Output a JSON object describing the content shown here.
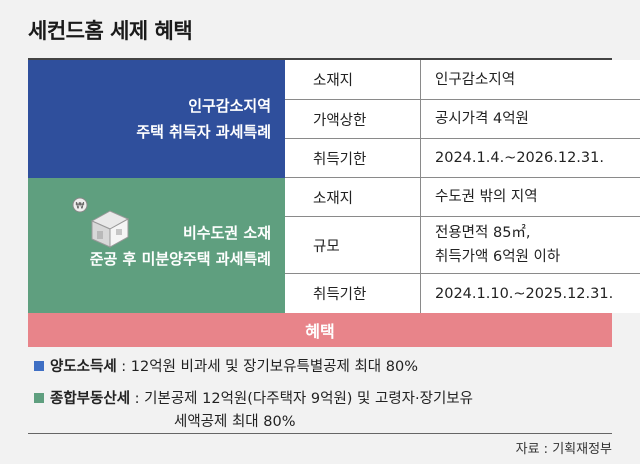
{
  "title": "세컨드홈 세제 혜택",
  "section1": {
    "label_line1": "인구감소지역",
    "label_line2": "주택 취득자 과세특례",
    "rows": [
      {
        "key": "소재지",
        "value": "인구감소지역"
      },
      {
        "key": "가액상한",
        "value": "공시가격 4억원"
      },
      {
        "key": "취득기한",
        "value": "2024.1.4.~2026.12.31."
      }
    ]
  },
  "section2": {
    "label_line1": "비수도권 소재",
    "label_line2": "준공 후 미분양주택 과세특례",
    "rows": [
      {
        "key": "소재지",
        "value": "수도권 밖의 지역"
      },
      {
        "key": "규모",
        "value_line1": "전용면적 85㎡,",
        "value_line2": "취득가액 6억원 이하"
      },
      {
        "key": "취득기한",
        "value": "2024.1.10.~2025.12.31."
      }
    ]
  },
  "benefit": {
    "header": "혜택",
    "items": [
      {
        "name": "양도소득세",
        "text": " : 12억원 비과세 및 장기보유특별공제 최대 80%",
        "color": "#3f6fc4"
      },
      {
        "name": "종합부동산세",
        "text": " : 기본공제 12억원(다주택자 9억원) 및 고령자·장기보유",
        "text2": "세액공제 최대 80%",
        "color": "#5f9f7f"
      }
    ]
  },
  "source": "자료 : 기획재정부",
  "colors": {
    "section1": "#2f4f9c",
    "section2": "#5f9f7f",
    "benefit": "#e8848a"
  }
}
